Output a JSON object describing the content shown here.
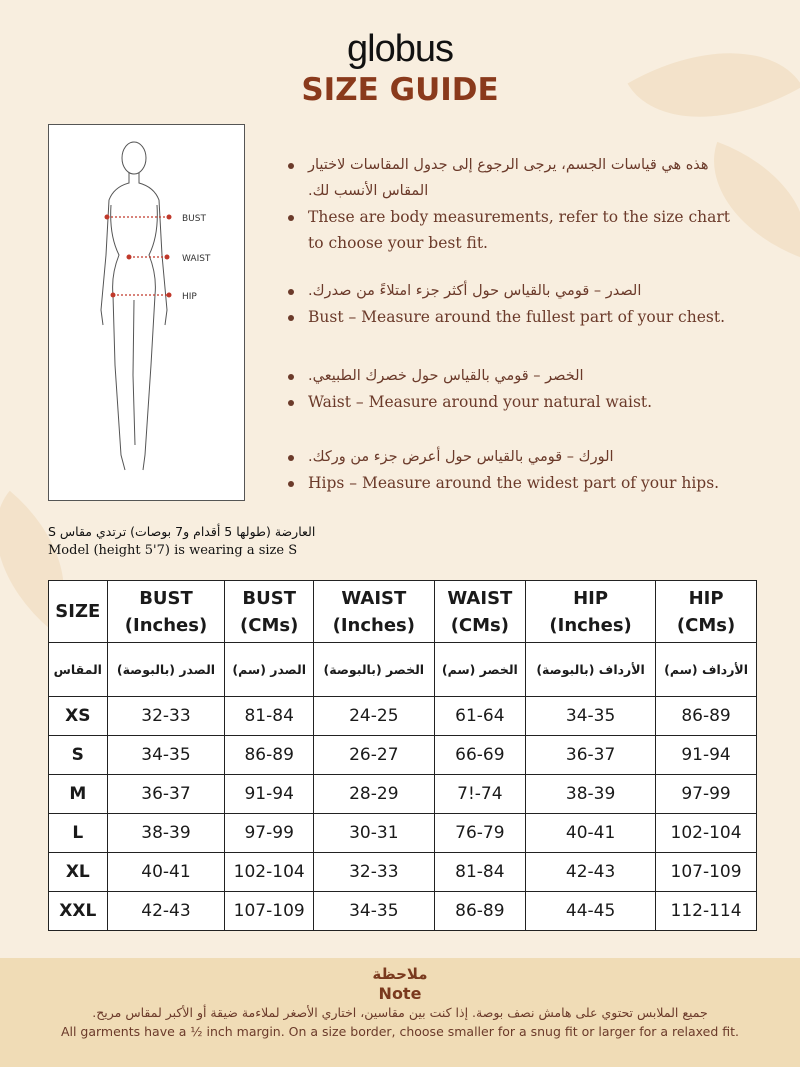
{
  "brand": "globus",
  "title": "SIZE GUIDE",
  "figure_labels": {
    "bust": "BUST",
    "waist": "WAIST",
    "hip": "HIP"
  },
  "bullets": [
    {
      "ar": "هذه هي قياسات الجسم، يرجى الرجوع إلى جدول المقاسات لاختيار المقاس الأنسب لك.",
      "en": "These are body measurements, refer to the size chart to choose your best fit."
    },
    {
      "ar": "الصدر – قومي بالقياس حول أكثر جزء امتلاءً من صدرك.",
      "en": "Bust – Measure around the fullest part of your chest."
    },
    {
      "ar": "الخصر – قومي بالقياس حول خصرك الطبيعي.",
      "en": "Waist – Measure around your natural waist."
    },
    {
      "ar": "الورك – قومي بالقياس حول أعرض جزء من وركك.",
      "en": "Hips – Measure around the widest part of your hips."
    }
  ],
  "model": {
    "ar": "العارضة (طولها 5 أقدام و7 بوصات) ترتدي مقاس S",
    "en": "Model (height 5'7) is wearing a size S"
  },
  "table": {
    "headers": [
      [
        "SIZE",
        ""
      ],
      [
        "BUST",
        "(Inches)"
      ],
      [
        "BUST",
        "(CMs)"
      ],
      [
        "WAIST",
        "(Inches)"
      ],
      [
        "WAIST",
        "(CMs)"
      ],
      [
        "HIP",
        "(Inches)"
      ],
      [
        "HIP",
        "(CMs)"
      ]
    ],
    "headers_ar": [
      "المقاس",
      "الصدر (بالبوصة)",
      "الصدر (سم)",
      "الخصر (بالبوصة)",
      "الخصر (سم)",
      "الأرداف (بالبوصة)",
      "الأرداف (سم)"
    ],
    "rows": [
      [
        "XS",
        "32-33",
        "81-84",
        "24-25",
        "61-64",
        "34-35",
        "86-89"
      ],
      [
        "S",
        "34-35",
        "86-89",
        "26-27",
        "66-69",
        "36-37",
        "91-94"
      ],
      [
        "M",
        "36-37",
        "91-94",
        "28-29",
        "7!-74",
        "38-39",
        "97-99"
      ],
      [
        "L",
        "38-39",
        "97-99",
        "30-31",
        "76-79",
        "40-41",
        "102-104"
      ],
      [
        "XL",
        "40-41",
        "102-104",
        "32-33",
        "81-84",
        "42-43",
        "107-109"
      ],
      [
        "XXL",
        "42-43",
        "107-109",
        "34-35",
        "86-89",
        "44-45",
        "112-114"
      ]
    ]
  },
  "note": {
    "title_ar": "ملاحظة",
    "title_en": "Note",
    "ar": "جميع الملابس تحتوي على هامش نصف بوصة. إذا كنت بين مقاسين، اختاري الأصغر لملاءمة ضيقة أو الأكبر لمقاس مريح.",
    "en": "All garments have a ½ inch margin. On a size border, choose smaller for a snug fit or larger for a relaxed fit."
  },
  "colors": {
    "title": "#8a3a1c",
    "text": "#6b3a2a",
    "background": "#f8eedf",
    "note_band": "#f0dcb6",
    "measure_line": "#c0392b"
  }
}
